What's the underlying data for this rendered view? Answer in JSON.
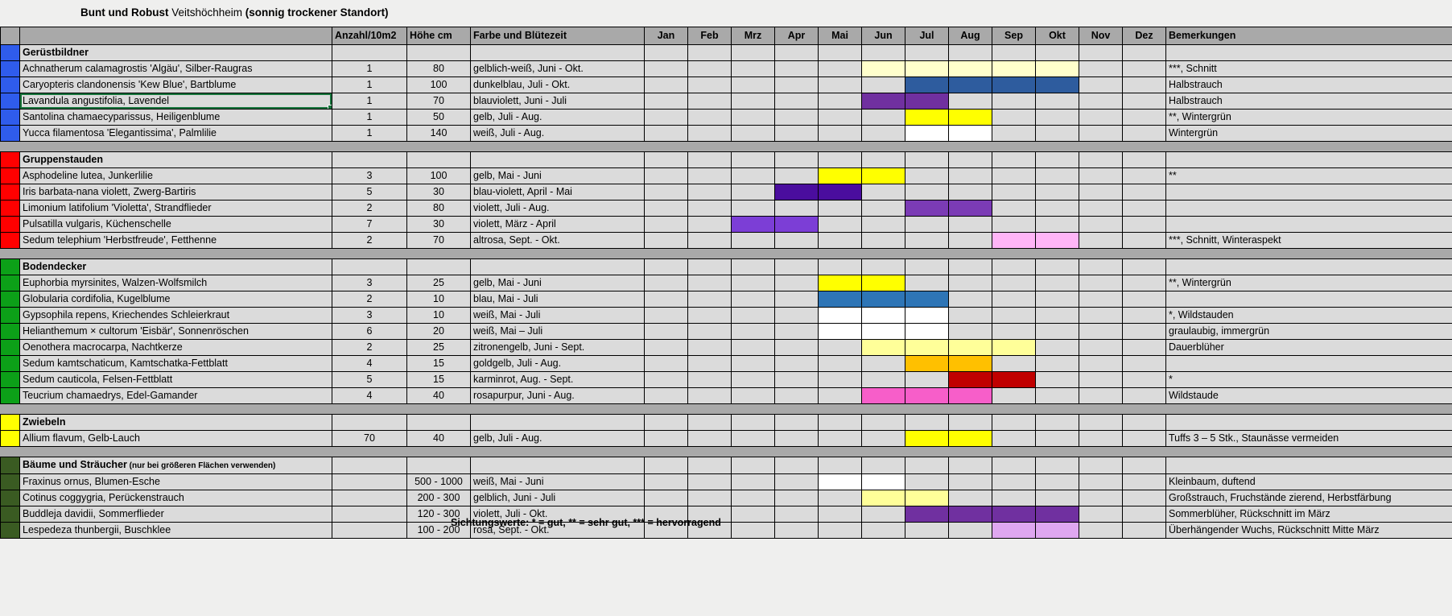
{
  "title": {
    "part1": "Bunt und Robust",
    "part2": " Veitshöchheim ",
    "part3": "(sonnig trockener Standort)"
  },
  "footer": "Sichtungswerte: * = gut, ** = sehr gut, *** = hervorragend",
  "columns": {
    "anzahl": "Anzahl/10m2",
    "hoehe": "Höhe cm",
    "farbe": "Farbe und Blütezeit",
    "bemerkungen": "Bemerkungen"
  },
  "months": [
    "Jan",
    "Feb",
    "Mrz",
    "Apr",
    "Mai",
    "Jun",
    "Jul",
    "Aug",
    "Sep",
    "Okt",
    "Nov",
    "Dez"
  ],
  "palette": {
    "cream": "#FFFFCC",
    "light_yellow": "#FFFF99",
    "yellow": "#FFFF00",
    "white": "#FFFFFF",
    "dark_blue": "#2E5C9E",
    "steel_blue": "#2E75B6",
    "purple": "#7030A0",
    "medium_purple": "#7B3BB5",
    "indigo": "#4A0D9E",
    "blue_violet": "#7C3ED6",
    "light_pink": "#FFB5F7",
    "orange": "#FFC000",
    "dark_red": "#C00000",
    "hot_pink": "#F75EC9",
    "lilac": "#DFA7F0"
  },
  "groups": [
    {
      "name": "Gerüstbildner",
      "note": "",
      "swatch": "#2F5CEC",
      "rows": [
        {
          "plant": "Achnatherum calamagrostis 'Algäu', Silber-Raugras",
          "anzahl": "1",
          "hoehe": "80",
          "farbe": "gelblich-weiß, Juni - Okt.",
          "bloom_start": 6,
          "bloom_end": 10,
          "bloom_color": "cream",
          "bemerkung": "***, Schnitt",
          "selected": false
        },
        {
          "plant": "Caryopteris clandonensis 'Kew Blue', Bartblume",
          "anzahl": "1",
          "hoehe": "100",
          "farbe": "dunkelblau, Juli - Okt.",
          "bloom_start": 7,
          "bloom_end": 10,
          "bloom_color": "dark_blue",
          "bemerkung": "Halbstrauch",
          "selected": false
        },
        {
          "plant": "Lavandula angustifolia, Lavendel",
          "anzahl": "1",
          "hoehe": "70",
          "farbe": "blauviolett, Juni - Juli",
          "bloom_start": 6,
          "bloom_end": 7,
          "bloom_color": "purple",
          "bemerkung": "Halbstrauch",
          "selected": true
        },
        {
          "plant": "Santolina chamaecyparissus, Heiligenblume",
          "anzahl": "1",
          "hoehe": "50",
          "farbe": "gelb, Juli - Aug.",
          "bloom_start": 7,
          "bloom_end": 8,
          "bloom_color": "yellow",
          "bemerkung": "**, Wintergrün",
          "selected": false
        },
        {
          "plant": "Yucca filamentosa 'Elegantissima', Palmlilie",
          "anzahl": "1",
          "hoehe": "140",
          "farbe": "weiß, Juli - Aug.",
          "bloom_start": 7,
          "bloom_end": 8,
          "bloom_color": "white",
          "bemerkung": "Wintergrün",
          "selected": false
        }
      ]
    },
    {
      "name": "Gruppenstauden",
      "note": "",
      "swatch": "#FF0000",
      "rows": [
        {
          "plant": "Asphodeline lutea, Junkerlilie",
          "anzahl": "3",
          "hoehe": "100",
          "farbe": "gelb, Mai - Juni",
          "bloom_start": 5,
          "bloom_end": 6,
          "bloom_color": "yellow",
          "bemerkung": "**",
          "selected": false
        },
        {
          "plant": "Iris barbata-nana violett, Zwerg-Bartiris",
          "anzahl": "5",
          "hoehe": "30",
          "farbe": "blau-violett, April - Mai",
          "bloom_start": 4,
          "bloom_end": 5,
          "bloom_color": "indigo",
          "bemerkung": "",
          "selected": false
        },
        {
          "plant": "Limonium latifolium 'Violetta', Strandflieder",
          "anzahl": "2",
          "hoehe": "80",
          "farbe": "violett, Juli - Aug.",
          "bloom_start": 7,
          "bloom_end": 8,
          "bloom_color": "medium_purple",
          "bemerkung": "",
          "selected": false
        },
        {
          "plant": "Pulsatilla vulgaris, Küchenschelle",
          "anzahl": "7",
          "hoehe": "30",
          "farbe": "violett, März - April",
          "bloom_start": 3,
          "bloom_end": 4,
          "bloom_color": "blue_violet",
          "bemerkung": "",
          "selected": false
        },
        {
          "plant": "Sedum telephium 'Herbstfreude', Fetthenne",
          "anzahl": "2",
          "hoehe": "70",
          "farbe": "altrosa, Sept. - Okt.",
          "bloom_start": 9,
          "bloom_end": 10,
          "bloom_color": "light_pink",
          "bemerkung": "***, Schnitt, Winteraspekt",
          "selected": false
        }
      ]
    },
    {
      "name": "Bodendecker",
      "note": "",
      "swatch": "#0CA018",
      "rows": [
        {
          "plant": "Euphorbia myrsinites, Walzen-Wolfsmilch",
          "anzahl": "3",
          "hoehe": "25",
          "farbe": "gelb, Mai - Juni",
          "bloom_start": 5,
          "bloom_end": 6,
          "bloom_color": "yellow",
          "bemerkung": "**, Wintergrün",
          "selected": false
        },
        {
          "plant": "Globularia cordifolia, Kugelblume",
          "anzahl": "2",
          "hoehe": "10",
          "farbe": "blau, Mai - Juli",
          "bloom_start": 5,
          "bloom_end": 7,
          "bloom_color": "steel_blue",
          "bemerkung": "",
          "selected": false
        },
        {
          "plant": "Gypsophila repens, Kriechendes Schleierkraut",
          "anzahl": "3",
          "hoehe": "10",
          "farbe": "weiß, Mai - Juli",
          "bloom_start": 5,
          "bloom_end": 7,
          "bloom_color": "white",
          "bemerkung": "*, Wildstauden",
          "selected": false
        },
        {
          "plant": "Helianthemum × cultorum 'Eisbär', Sonnenröschen",
          "anzahl": "6",
          "hoehe": "20",
          "farbe": "weiß, Mai – Juli",
          "bloom_start": 5,
          "bloom_end": 7,
          "bloom_color": "white",
          "bemerkung": "graulaubig, immergrün",
          "selected": false
        },
        {
          "plant": "Oenothera macrocarpa, Nachtkerze",
          "anzahl": "2",
          "hoehe": "25",
          "farbe": "zitronengelb, Juni - Sept.",
          "bloom_start": 6,
          "bloom_end": 9,
          "bloom_color": "light_yellow",
          "bemerkung": "Dauerblüher",
          "selected": false
        },
        {
          "plant": "Sedum kamtschaticum, Kamtschatka-Fettblatt",
          "anzahl": "4",
          "hoehe": "15",
          "farbe": "goldgelb, Juli - Aug.",
          "bloom_start": 7,
          "bloom_end": 8,
          "bloom_color": "orange",
          "bemerkung": "",
          "selected": false
        },
        {
          "plant": "Sedum cauticola, Felsen-Fettblatt",
          "anzahl": "5",
          "hoehe": "15",
          "farbe": "karminrot, Aug. - Sept.",
          "bloom_start": 8,
          "bloom_end": 9,
          "bloom_color": "dark_red",
          "bemerkung": "*",
          "selected": false
        },
        {
          "plant": "Teucrium chamaedrys, Edel-Gamander",
          "anzahl": "4",
          "hoehe": "40",
          "farbe": "rosapurpur, Juni - Aug.",
          "bloom_start": 6,
          "bloom_end": 8,
          "bloom_color": "hot_pink",
          "bemerkung": "Wildstaude",
          "selected": false
        }
      ]
    },
    {
      "name": "Zwiebeln",
      "note": "",
      "swatch": "#FFFF00",
      "rows": [
        {
          "plant": "Allium flavum, Gelb-Lauch",
          "anzahl": "70",
          "hoehe": "40",
          "farbe": "gelb, Juli - Aug.",
          "bloom_start": 7,
          "bloom_end": 8,
          "bloom_color": "yellow",
          "bemerkung": "Tuffs 3 – 5 Stk., Staunässe vermeiden",
          "selected": false
        }
      ]
    },
    {
      "name": "Bäume und Sträucher",
      "note": " (nur bei größeren Flächen verwenden)",
      "swatch": "#3A5B22",
      "rows": [
        {
          "plant": "Fraxinus ornus, Blumen-Esche",
          "anzahl": "",
          "hoehe": "500 - 1000",
          "farbe": "weiß, Mai - Juni",
          "bloom_start": 5,
          "bloom_end": 6,
          "bloom_color": "white",
          "bemerkung": "Kleinbaum, duftend",
          "selected": false
        },
        {
          "plant": "Cotinus coggygria, Perückenstrauch",
          "anzahl": "",
          "hoehe": "200 - 300",
          "farbe": "gelblich, Juni - Juli",
          "bloom_start": 6,
          "bloom_end": 7,
          "bloom_color": "light_yellow",
          "bemerkung": "Großstrauch, Fruchstände zierend, Herbstfärbung",
          "selected": false
        },
        {
          "plant": "Buddleja davidii, Sommerflieder",
          "anzahl": "",
          "hoehe": "120 - 300",
          "farbe": "violett, Juli - Okt.",
          "bloom_start": 7,
          "bloom_end": 10,
          "bloom_color": "purple",
          "bemerkung": "Sommerblüher, Rückschnitt im März",
          "selected": false
        },
        {
          "plant": "Lespedeza thunbergii, Buschklee",
          "anzahl": "",
          "hoehe": "100 - 200",
          "farbe": "rosa, Sept. - Okt.",
          "bloom_start": 9,
          "bloom_end": 10,
          "bloom_color": "lilac",
          "bemerkung": "Überhängender Wuchs, Rückschnitt Mitte März",
          "selected": false
        }
      ]
    }
  ]
}
